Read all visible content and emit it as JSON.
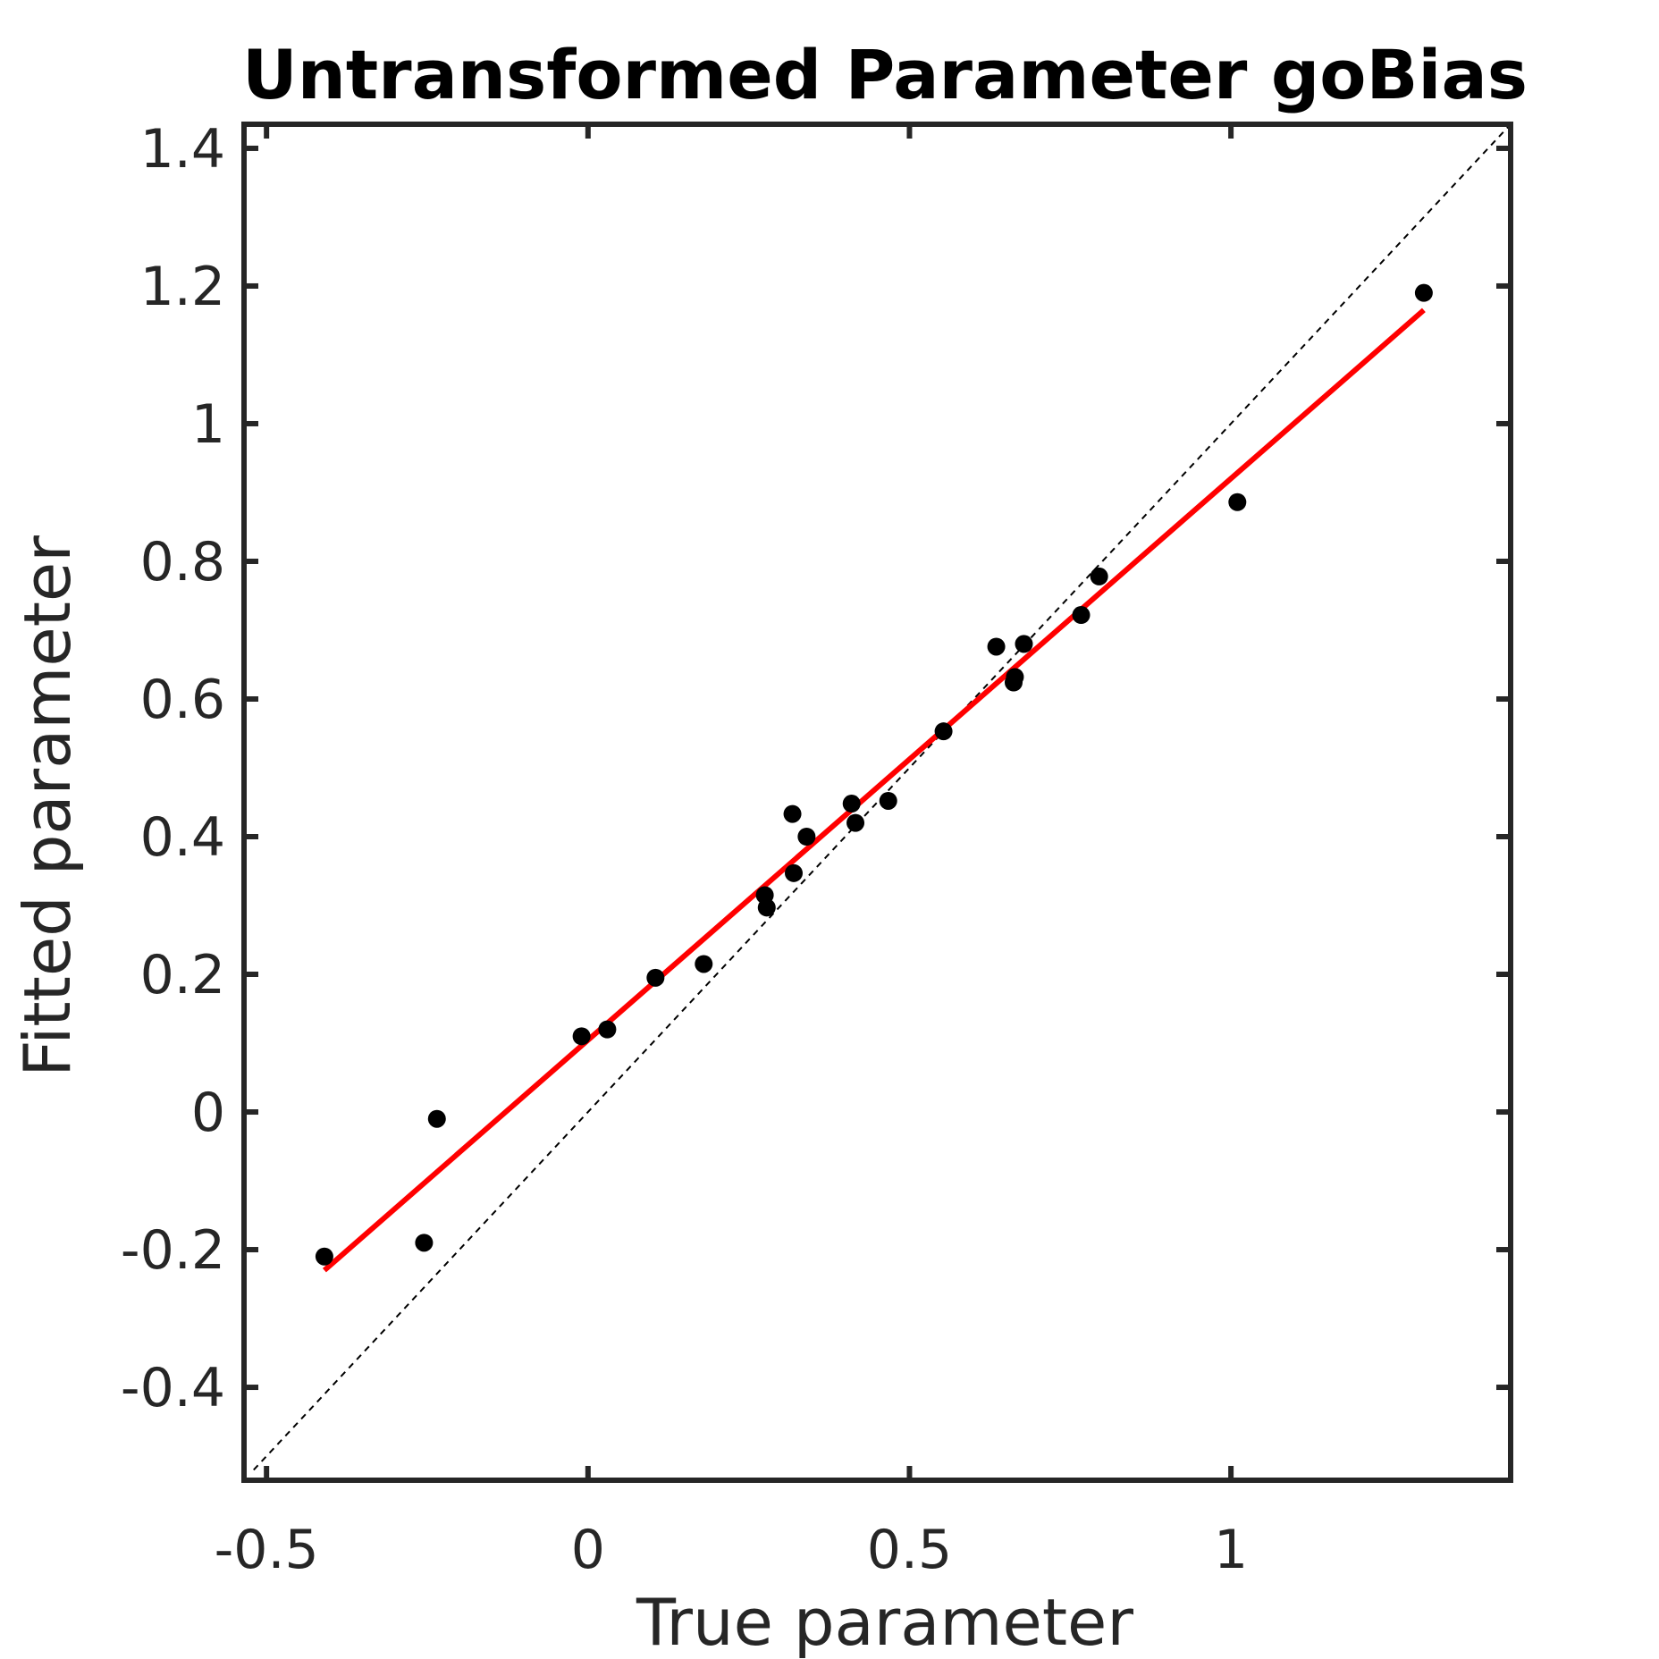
{
  "chart_data": {
    "type": "scatter",
    "title": "Untransformed Parameter goBias",
    "xlabel": "True parameter",
    "ylabel": "Fitted parameter",
    "xlim": [
      -0.535,
      1.435
    ],
    "ylim": [
      -0.535,
      1.435
    ],
    "xticks": [
      -0.5,
      0,
      0.5,
      1
    ],
    "xtick_labels": [
      "-0.5",
      "0",
      "0.5",
      "1"
    ],
    "yticks": [
      -0.4,
      -0.2,
      0,
      0.2,
      0.4,
      0.6,
      0.8,
      1,
      1.2,
      1.4
    ],
    "ytick_labels": [
      "-0.4",
      "-0.2",
      "0",
      "0.2",
      "0.4",
      "0.6",
      "0.8",
      "1",
      "1.2",
      "1.4"
    ],
    "grid": false,
    "colors": {
      "points": "#000000",
      "fit_line": "#ff0000",
      "identity_line": "#000000",
      "axes": "#262626"
    },
    "series": [
      {
        "kind": "points",
        "x": [
          -0.41,
          -0.255,
          -0.235,
          -0.01,
          0.03,
          0.105,
          0.18,
          0.275,
          0.278,
          0.318,
          0.32,
          0.34,
          0.41,
          0.416,
          0.467,
          0.553,
          0.635,
          0.662,
          0.664,
          0.678,
          0.767,
          0.795,
          1.01,
          1.3
        ],
        "y": [
          -0.21,
          -0.19,
          -0.01,
          0.11,
          0.12,
          0.195,
          0.215,
          0.315,
          0.297,
          0.433,
          0.347,
          0.4,
          0.448,
          0.42,
          0.452,
          0.553,
          0.676,
          0.624,
          0.632,
          0.68,
          0.722,
          0.778,
          0.886,
          1.19
        ]
      },
      {
        "kind": "fit-line",
        "x": [
          -0.41,
          1.3
        ],
        "y": [
          -0.23,
          1.165
        ]
      },
      {
        "kind": "identity-line",
        "x": [
          -0.52,
          1.435
        ],
        "y": [
          -0.52,
          1.435
        ]
      }
    ]
  }
}
